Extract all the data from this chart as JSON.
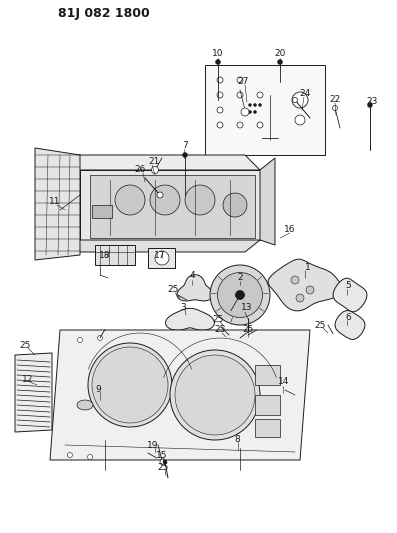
{
  "title": "81J 082 1800",
  "bg_color": "#ffffff",
  "lc": "#1a1a1a",
  "title_fontsize": 9,
  "label_fontsize": 6.5,
  "figsize": [
    3.97,
    5.33
  ],
  "dpi": 100
}
